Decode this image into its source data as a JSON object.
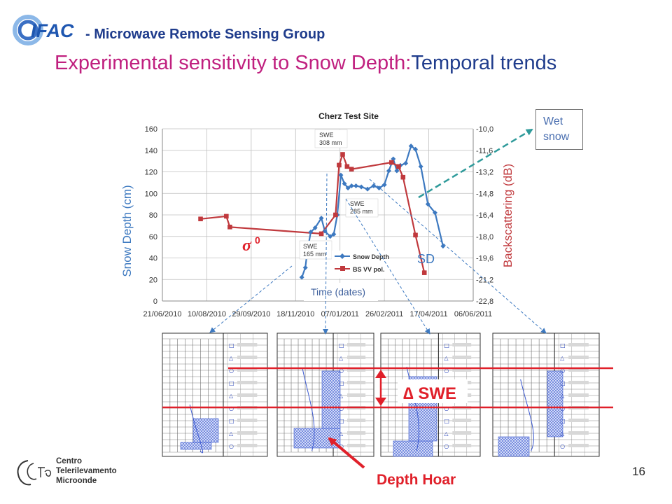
{
  "header": {
    "logo_text": "IFAC",
    "group_name": "-  Microwave Remote Sensing Group"
  },
  "slide": {
    "title_part1": "Experimental sensitivity to Snow Depth:",
    "title_part2": "Temporal trends",
    "page_number": "16"
  },
  "annotations": {
    "wet_snow": [
      "Wet",
      "snow"
    ],
    "sigma0": "σ",
    "sigma0_sup": "0",
    "sd": "SD",
    "delta_swe": "∆ SWE",
    "depth_hoar": "Depth Hoar",
    "swe_308": [
      "SWE",
      "308 mm"
    ],
    "swe_285": [
      "SWE",
      "285 mm"
    ],
    "swe_165": [
      "SWE",
      "165 mm"
    ]
  },
  "footer": {
    "org_lines": [
      "Centro",
      "Telerilevamento",
      "Microonde"
    ]
  },
  "colors": {
    "snow_depth": "#3d79c0",
    "backscatter": "#c0393d",
    "accent_red": "#e0202a",
    "teal_arrow": "#2e9a9a",
    "title_magenta": "#c0207f",
    "title_blue": "#1f3c8c"
  },
  "chart_data": {
    "type": "line",
    "title": "Cherz Test Site",
    "xlabel": "Time (dates)",
    "ylabel": "Snow Depth (cm)",
    "y2label": "Backscattering  (dB)",
    "x_ticks": [
      "21/06/2010",
      "10/08/2010",
      "29/09/2010",
      "18/11/2010",
      "07/01/2011",
      "26/02/2011",
      "17/04/2011",
      "06/06/2011"
    ],
    "y_ticks": [
      "0",
      "20",
      "40",
      "60",
      "80",
      "100",
      "120",
      "140",
      "160"
    ],
    "y2_ticks": [
      "-22,8",
      "-21,2",
      "-19,6",
      "-18,0",
      "-16,4",
      "-14,8",
      "-13,2",
      "-11,6",
      "-10,0"
    ],
    "ylim": [
      0,
      160
    ],
    "y2lim": [
      -22.8,
      -10.0
    ],
    "grid": true,
    "legend": "bottom-center",
    "series": [
      {
        "name": "Snow Depth",
        "axis": "left",
        "marker": "diamond",
        "points": [
          [
            "2010-11-25",
            22
          ],
          [
            "2010-11-29",
            31
          ],
          [
            "2010-12-01",
            45
          ],
          [
            "2010-12-05",
            64
          ],
          [
            "2010-12-10",
            68
          ],
          [
            "2010-12-17",
            77
          ],
          [
            "2010-12-21",
            65
          ],
          [
            "2010-12-27",
            60
          ],
          [
            "2010-12-31",
            62
          ],
          [
            "2011-01-04",
            80
          ],
          [
            "2011-01-08",
            117
          ],
          [
            "2011-01-12",
            109
          ],
          [
            "2011-01-16",
            105
          ],
          [
            "2011-01-20",
            107
          ],
          [
            "2011-01-25",
            107
          ],
          [
            "2011-01-31",
            106
          ],
          [
            "2011-02-07",
            104
          ],
          [
            "2011-02-14",
            107
          ],
          [
            "2011-02-20",
            105
          ],
          [
            "2011-02-26",
            108
          ],
          [
            "2011-03-03",
            121
          ],
          [
            "2011-03-08",
            132
          ],
          [
            "2011-03-12",
            121
          ],
          [
            "2011-03-16",
            126
          ],
          [
            "2011-03-22",
            128
          ],
          [
            "2011-03-28",
            144
          ],
          [
            "2011-04-02",
            141
          ],
          [
            "2011-04-08",
            125
          ],
          [
            "2011-04-16",
            90
          ],
          [
            "2011-04-24",
            82
          ],
          [
            "2011-05-03",
            51
          ]
        ]
      },
      {
        "name": "BS VV pol.",
        "axis": "right",
        "marker": "square",
        "points": [
          [
            "2010-08-03",
            -16.7
          ],
          [
            "2010-09-01",
            -16.5
          ],
          [
            "2010-09-05",
            -17.3
          ],
          [
            "2010-12-17",
            -17.8
          ],
          [
            "2011-01-02",
            -16.4
          ],
          [
            "2011-01-06",
            -12.7
          ],
          [
            "2011-01-10",
            -11.9
          ],
          [
            "2011-01-15",
            -12.8
          ],
          [
            "2011-01-20",
            -13.0
          ],
          [
            "2011-03-06",
            -12.5
          ],
          [
            "2011-03-14",
            -12.8
          ],
          [
            "2011-03-19",
            -13.6
          ],
          [
            "2011-04-02",
            -17.9
          ],
          [
            "2011-04-12",
            -20.7
          ]
        ]
      }
    ]
  }
}
